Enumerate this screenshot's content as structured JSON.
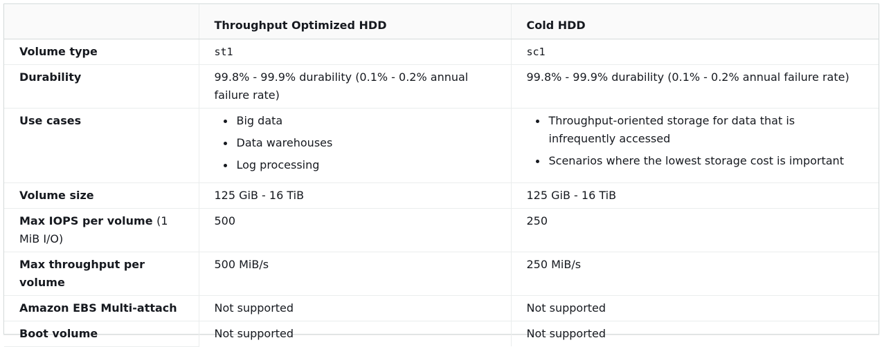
{
  "table": {
    "headers": [
      "",
      "Throughput Optimized HDD",
      "Cold HDD"
    ],
    "rows": [
      {
        "label": "Volume type",
        "note": "",
        "st1": "st1",
        "sc1": "sc1"
      },
      {
        "label": "Durability",
        "note": "",
        "st1": "99.8% - 99.9% durability (0.1% - 0.2% annual failure rate)",
        "sc1": "99.8% - 99.9% durability (0.1% - 0.2% annual failure rate)"
      },
      {
        "label": "Use cases",
        "note": "",
        "st1": [
          "Big data",
          "Data warehouses",
          "Log processing"
        ],
        "sc1": [
          "Throughput-oriented storage for data that is infrequently accessed",
          "Scenarios where the lowest storage cost is important"
        ]
      },
      {
        "label": "Volume size",
        "note": "",
        "st1": "125 GiB - 16 TiB",
        "sc1": "125 GiB - 16 TiB"
      },
      {
        "label": "Max IOPS per volume",
        "note": "(1 MiB I/O)",
        "st1": "500",
        "sc1": "250"
      },
      {
        "label": "Max throughput per volume",
        "note": "",
        "st1": "500 MiB/s",
        "sc1": "250 MiB/s"
      },
      {
        "label": "Amazon EBS Multi-attach",
        "note": "",
        "st1": "Not supported",
        "sc1": "Not supported"
      },
      {
        "label": "Boot volume",
        "note": "",
        "st1": "Not supported",
        "sc1": "Not supported"
      }
    ]
  }
}
